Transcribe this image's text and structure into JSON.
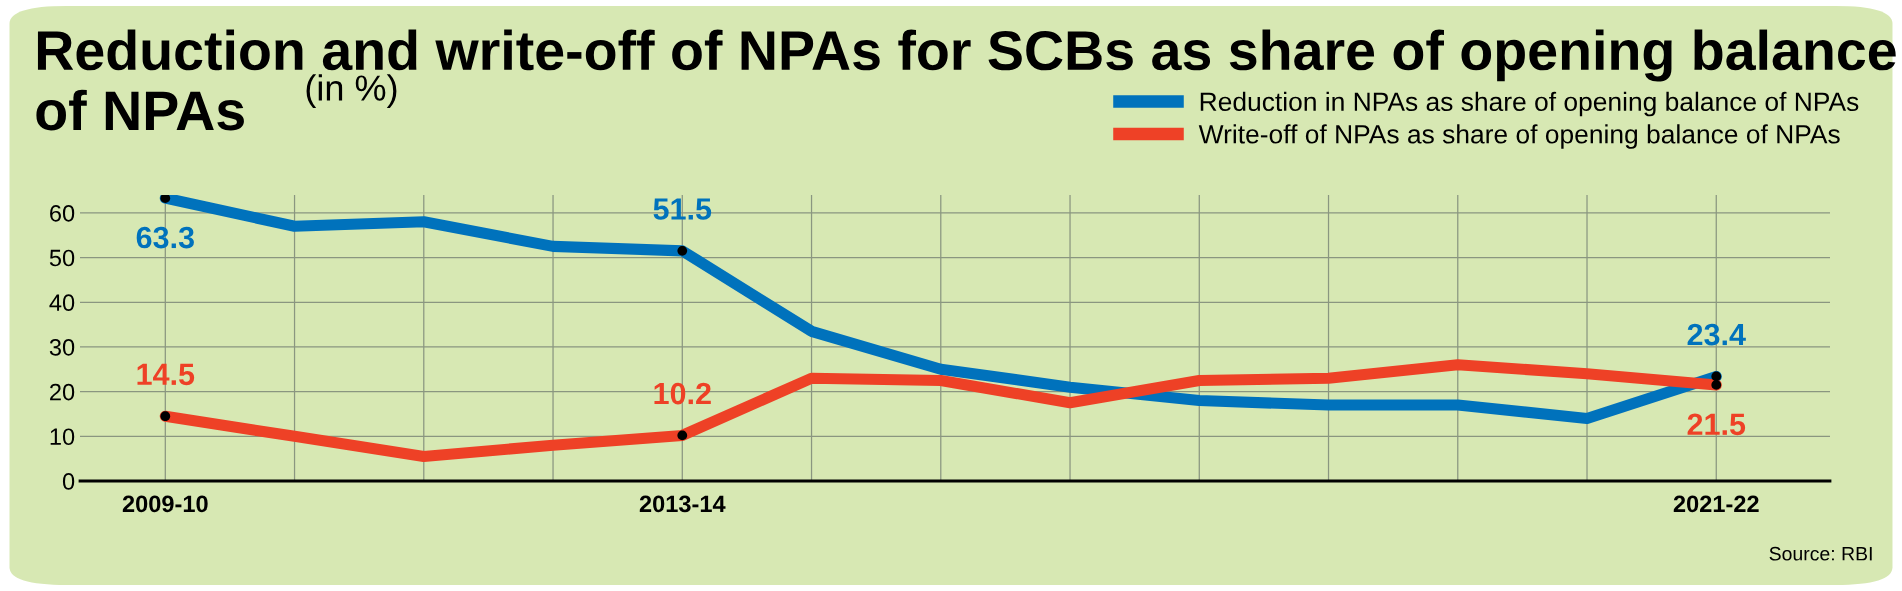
{
  "chart_data": {
    "type": "line",
    "title": "Reduction and write-off of NPAs for SCBs as share of opening balance of NPAs",
    "subtitle": "(in %)",
    "categories": [
      "2009-10",
      null,
      null,
      null,
      "2013-14",
      null,
      null,
      null,
      null,
      null,
      null,
      null,
      "2021-22"
    ],
    "series": [
      {
        "name": "Reduction in NPAs as share of opening balance of NPAs",
        "color": "#0072bc",
        "values": [
          63.3,
          57,
          58,
          52.5,
          51.5,
          33.5,
          25,
          21,
          18,
          17,
          17,
          14,
          23.4
        ],
        "value_labels": [
          "63.3",
          null,
          null,
          null,
          "51.5",
          null,
          null,
          null,
          null,
          null,
          null,
          null,
          "23.4"
        ]
      },
      {
        "name": "Write-off of NPAs as share of opening balance of NPAs",
        "color": "#ee4126",
        "values": [
          14.5,
          10,
          5.5,
          8,
          10.2,
          23,
          22.5,
          17.5,
          22.5,
          23,
          26,
          24,
          21.5
        ],
        "value_labels": [
          "14.5",
          null,
          null,
          null,
          "10.2",
          null,
          null,
          null,
          null,
          null,
          null,
          null,
          "21.5"
        ]
      }
    ],
    "ylim": [
      0,
      64
    ],
    "yticks": [
      0,
      10,
      20,
      30,
      40,
      50,
      60
    ],
    "grid": true,
    "legend": "top right",
    "line_style": "solid",
    "annotations": [
      "Source: RBI"
    ]
  }
}
